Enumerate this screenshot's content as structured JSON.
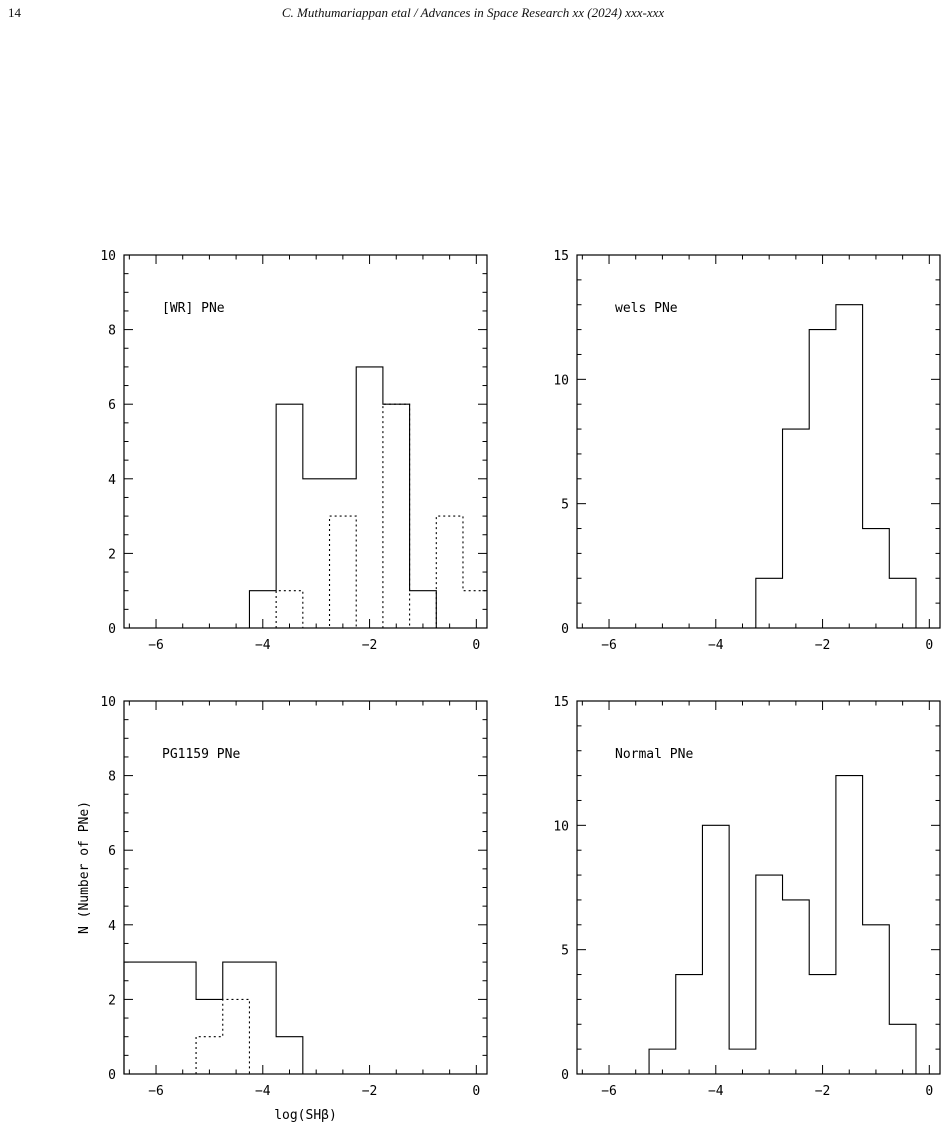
{
  "header": {
    "page_number": "14",
    "running_head": "C. Muthumariappan etal / Advances in Space Research xx (2024) xxx-xxx"
  },
  "chart_data": [
    {
      "type": "bar",
      "annotation": "[WR] PNe",
      "xlim": [
        -6.6,
        0.2
      ],
      "ylim": [
        0,
        10
      ],
      "xticks": [
        -6,
        -4,
        -2,
        0
      ],
      "yticks": [
        0,
        2,
        4,
        6,
        8,
        10
      ],
      "series": [
        {
          "style": "solid",
          "edges": [
            -4.25,
            -3.75,
            -3.25,
            -2.75,
            -2.25,
            -1.75,
            -1.25,
            -0.75
          ],
          "counts": [
            1,
            6,
            4,
            4,
            7,
            6,
            1
          ]
        },
        {
          "style": "dotted",
          "edges": [
            -3.75,
            -3.25,
            -2.75,
            -2.25,
            -1.75,
            -1.25,
            -0.75,
            -0.25,
            0.2
          ],
          "counts": [
            1,
            0,
            3,
            0,
            6,
            0,
            3,
            1
          ]
        }
      ]
    },
    {
      "type": "bar",
      "annotation": "wels PNe",
      "xlim": [
        -6.6,
        0.2
      ],
      "ylim": [
        0,
        15
      ],
      "xticks": [
        -6,
        -4,
        -2,
        0
      ],
      "yticks": [
        0,
        5,
        10,
        15
      ],
      "series": [
        {
          "style": "solid",
          "edges": [
            -3.25,
            -2.75,
            -2.25,
            -1.75,
            -1.25,
            -0.75,
            -0.25
          ],
          "counts": [
            2,
            8,
            12,
            13,
            4,
            2
          ]
        }
      ]
    },
    {
      "type": "bar",
      "annotation": "PG1159 PNe",
      "xlabel": "log(SHβ)",
      "ylabel": "N (Number of PNe)",
      "xlim": [
        -6.6,
        0.2
      ],
      "ylim": [
        0,
        10
      ],
      "xticks": [
        -6,
        -4,
        -2,
        0
      ],
      "yticks": [
        0,
        2,
        4,
        6,
        8,
        10
      ],
      "series": [
        {
          "style": "solid",
          "edges": [
            -6.6,
            -5.25,
            -4.75,
            -3.75,
            -3.25
          ],
          "counts": [
            3,
            2,
            3,
            1
          ]
        },
        {
          "style": "dotted",
          "edges": [
            -5.25,
            -4.75,
            -4.25
          ],
          "counts": [
            1,
            2
          ]
        }
      ]
    },
    {
      "type": "bar",
      "annotation": "Normal PNe",
      "xlim": [
        -6.6,
        0.2
      ],
      "ylim": [
        0,
        15
      ],
      "xticks": [
        -6,
        -4,
        -2,
        0
      ],
      "yticks": [
        0,
        5,
        10,
        15
      ],
      "series": [
        {
          "style": "solid",
          "edges": [
            -5.25,
            -4.75,
            -4.25,
            -3.75,
            -3.25,
            -2.75,
            -2.25,
            -1.75,
            -1.25,
            -0.75,
            -0.25
          ],
          "counts": [
            1,
            4,
            10,
            1,
            8,
            7,
            4,
            12,
            6,
            2
          ]
        }
      ]
    }
  ]
}
